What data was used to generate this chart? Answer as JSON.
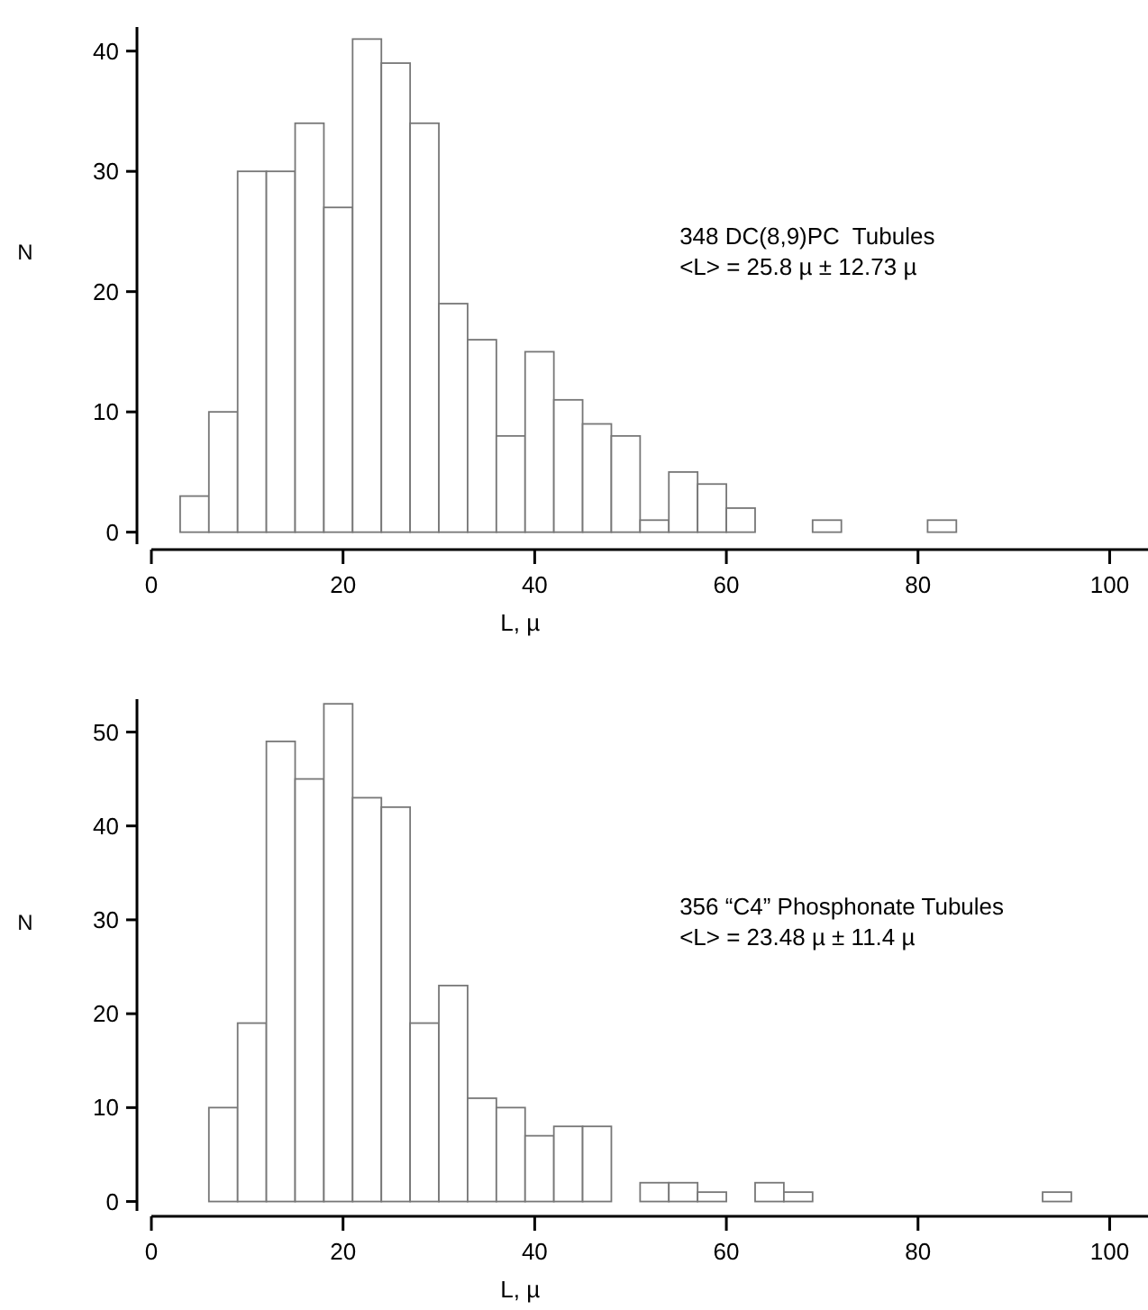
{
  "chart_data": [
    {
      "type": "histogram",
      "xlabel": "L, µ",
      "ylabel": "N",
      "color": "#ffffff",
      "bins": [
        0,
        3,
        6,
        9,
        12,
        15,
        18,
        21,
        24,
        27,
        30,
        33,
        36,
        39,
        42,
        45,
        48,
        51,
        54,
        57,
        60,
        63,
        66,
        69,
        72,
        75,
        78,
        81,
        84,
        87,
        90,
        93,
        96,
        99,
        102
      ],
      "values": [
        0,
        3,
        10,
        30,
        30,
        34,
        27,
        41,
        39,
        34,
        19,
        16,
        8,
        15,
        11,
        9,
        8,
        1,
        5,
        4,
        2,
        0,
        0,
        1,
        0,
        0,
        0,
        1,
        0,
        0,
        0,
        0,
        0,
        0
      ],
      "xlim": [
        0,
        104
      ],
      "xticks": [
        0,
        20,
        40,
        60,
        80,
        100
      ],
      "ylim": [
        -1,
        42
      ],
      "yticks": [
        0,
        10,
        20,
        30,
        40
      ],
      "annotations": [
        "348 DC(8,9)PC  Tubules",
        "<L> = 25.8 µ ± 12.73 µ"
      ]
    },
    {
      "type": "histogram",
      "xlabel": "L,  µ",
      "ylabel": "N",
      "color": "#ffffff",
      "bins": [
        0,
        3,
        6,
        9,
        12,
        15,
        18,
        21,
        24,
        27,
        30,
        33,
        36,
        39,
        42,
        45,
        48,
        51,
        54,
        57,
        60,
        63,
        66,
        69,
        72,
        75,
        78,
        81,
        84,
        87,
        90,
        93,
        96,
        99,
        102
      ],
      "values": [
        0,
        0,
        10,
        19,
        49,
        45,
        53,
        43,
        42,
        19,
        23,
        11,
        10,
        7,
        8,
        8,
        0,
        2,
        2,
        1,
        0,
        2,
        1,
        0,
        0,
        0,
        0,
        0,
        0,
        0,
        0,
        1,
        0,
        0
      ],
      "xlim": [
        0,
        104
      ],
      "xticks": [
        0,
        20,
        40,
        60,
        80,
        100
      ],
      "ylim": [
        -1,
        53.5
      ],
      "yticks": [
        0,
        10,
        20,
        30,
        40,
        50
      ],
      "annotations": [
        "356 “C4” Phosphonate Tubules",
        "<L> = 23.48 µ ± 11.4 µ"
      ]
    }
  ]
}
